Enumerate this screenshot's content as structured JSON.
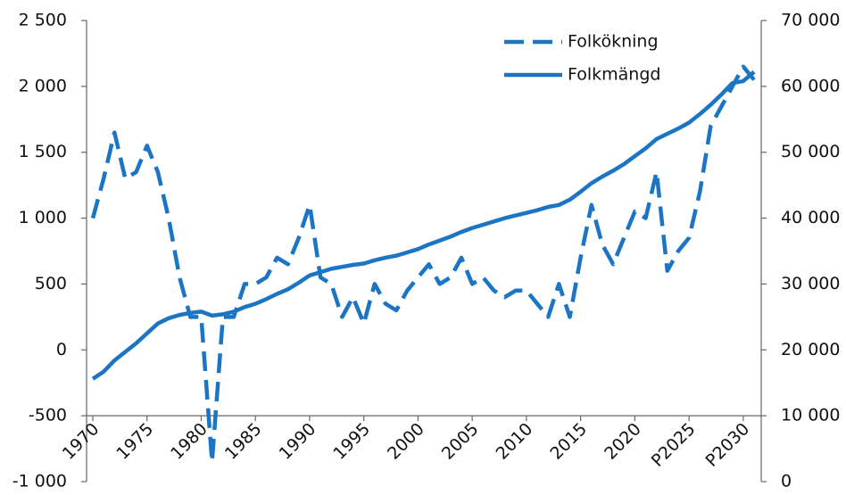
{
  "chart_data": {
    "type": "line",
    "x": [
      1970,
      1971,
      1972,
      1973,
      1974,
      1975,
      1976,
      1977,
      1978,
      1979,
      1980,
      1981,
      1982,
      1983,
      1984,
      1985,
      1986,
      1987,
      1988,
      1989,
      1990,
      1991,
      1992,
      1993,
      1994,
      1995,
      1996,
      1997,
      1998,
      1999,
      2000,
      2001,
      2002,
      2003,
      2004,
      2005,
      2006,
      2007,
      2008,
      2009,
      2010,
      2011,
      2012,
      2013,
      2014,
      2015,
      2016,
      2017,
      2018,
      2019,
      2020,
      2021,
      2022,
      2023,
      2024,
      2025,
      2026,
      2027,
      2028,
      2029,
      2030,
      2031
    ],
    "series": [
      {
        "name": "Folkökning",
        "color": "#1c75c4",
        "style": "dashed",
        "values": [
          1000,
          1300,
          1650,
          1300,
          1350,
          1550,
          1350,
          1000,
          550,
          250,
          250,
          -850,
          250,
          250,
          500,
          500,
          550,
          700,
          650,
          850,
          1100,
          550,
          500,
          250,
          400,
          200,
          500,
          350,
          300,
          450,
          550,
          650,
          500,
          550,
          700,
          500,
          550,
          450,
          400,
          450,
          450,
          350,
          250,
          500,
          250,
          700,
          1100,
          800,
          650,
          850,
          1050,
          1000,
          1350,
          600,
          750,
          850,
          1200,
          1700,
          1850,
          2000,
          2150,
          2050
        ]
      },
      {
        "name": "Folkmängd",
        "color": "#1c75c4",
        "style": "solid",
        "axis": "y2",
        "values": [
          15600,
          16700,
          18400,
          19700,
          21000,
          22500,
          24000,
          24800,
          25300,
          25600,
          25800,
          25200,
          25400,
          25800,
          26500,
          27000,
          27700,
          28500,
          29200,
          30200,
          31300,
          31800,
          32300,
          32600,
          32900,
          33100,
          33600,
          34000,
          34300,
          34800,
          35300,
          36000,
          36600,
          37200,
          37900,
          38500,
          39000,
          39500,
          40000,
          40400,
          40800,
          41200,
          41700,
          42000,
          42800,
          44000,
          45300,
          46300,
          47200,
          48200,
          49400,
          50600,
          52000,
          52800,
          53600,
          54500,
          55800,
          57200,
          58800,
          60500,
          60800,
          62200
        ]
      }
    ],
    "xlim": [
      1970,
      2031
    ],
    "xticks": [
      1970,
      1975,
      1980,
      1985,
      1990,
      1995,
      2000,
      2005,
      2010,
      2015,
      2020,
      {
        "value": 2025,
        "label": "P2025"
      },
      {
        "value": 2030,
        "label": "P2030"
      }
    ],
    "ylim": [
      -1000,
      2500
    ],
    "yticks": [
      {
        "value": -1000,
        "label": "-1 000"
      },
      -500,
      0,
      500,
      {
        "value": 1000,
        "label": "1 000"
      },
      {
        "value": 1500,
        "label": "1 500"
      },
      {
        "value": 2000,
        "label": "2 000"
      },
      {
        "value": 2500,
        "label": "2 500"
      }
    ],
    "y2lim": [
      0,
      70000
    ],
    "y2ticks": [
      0,
      {
        "value": 10000,
        "label": "10 000"
      },
      {
        "value": 20000,
        "label": "20 000"
      },
      {
        "value": 30000,
        "label": "30 000"
      },
      {
        "value": 40000,
        "label": "40 000"
      },
      {
        "value": 50000,
        "label": "50 000"
      },
      {
        "value": 60000,
        "label": "60 000"
      },
      {
        "value": 70000,
        "label": "70 000"
      }
    ],
    "xaxis_at": -500
  }
}
